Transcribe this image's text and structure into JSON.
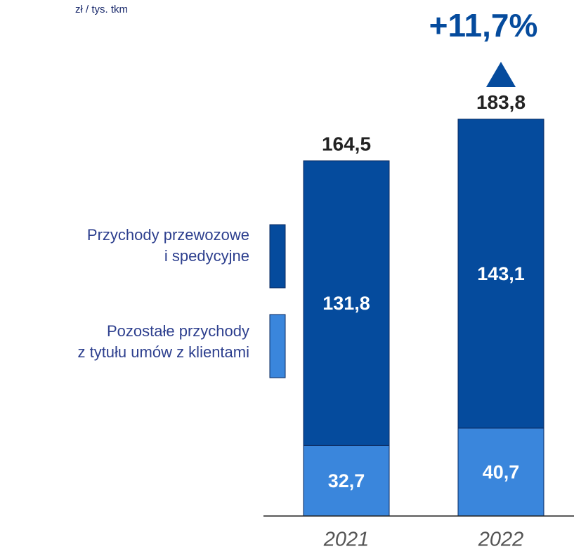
{
  "chart_data": {
    "type": "stacked_bar",
    "unit": "zł / tys. tkm",
    "annotation": "+11,7%",
    "categories": [
      "2021",
      "2022"
    ],
    "series": [
      {
        "name": "Pozostałe przychody\nz tytułu umów z klientami",
        "color": "#3a86dc",
        "values": [
          32.7,
          40.7
        ],
        "value_labels": [
          "32,7",
          "40,7"
        ]
      },
      {
        "name": "Przychody przewozowe\ni spedycyjne",
        "color": "#054b9d",
        "values": [
          131.8,
          143.1
        ],
        "value_labels": [
          "131,8",
          "143,1"
        ]
      }
    ],
    "totals": [
      164.5,
      183.8
    ],
    "total_labels": [
      "164,5",
      "183,8"
    ],
    "ylim": [
      0,
      200
    ]
  }
}
